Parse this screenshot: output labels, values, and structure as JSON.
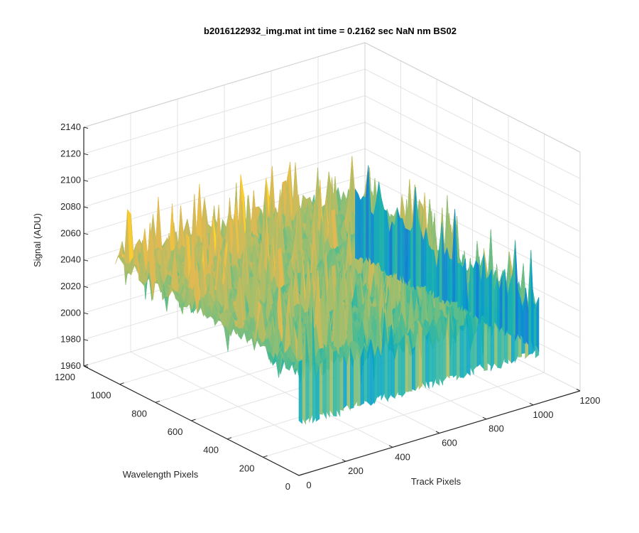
{
  "chart_data": {
    "type": "surface",
    "title": "b2016122932_img.mat int time = 0.2162 sec  NaN nm BS02",
    "xlabel": "Track Pixels",
    "ylabel": "Wavelength Pixels",
    "zlabel": "Signal (ADU)",
    "xlim": [
      0,
      1200
    ],
    "ylim": [
      0,
      1200
    ],
    "zlim": [
      1960,
      2140
    ],
    "x_ticks": [
      0,
      200,
      400,
      600,
      800,
      1000,
      1200
    ],
    "y_ticks": [
      0,
      200,
      400,
      600,
      800,
      1000,
      1200
    ],
    "z_ticks": [
      1960,
      1980,
      2000,
      2020,
      2040,
      2060,
      2080,
      2100,
      2120,
      2140
    ],
    "data_x_range": [
      0,
      1024
    ],
    "data_y_range": [
      0,
      1024
    ],
    "signal_baseline": 2030,
    "signal_typical_range": [
      1995,
      2085
    ],
    "signal_peak_max": 2120,
    "signal_min_dip": 1965,
    "colormap": "parula",
    "grid": true,
    "box": true
  }
}
